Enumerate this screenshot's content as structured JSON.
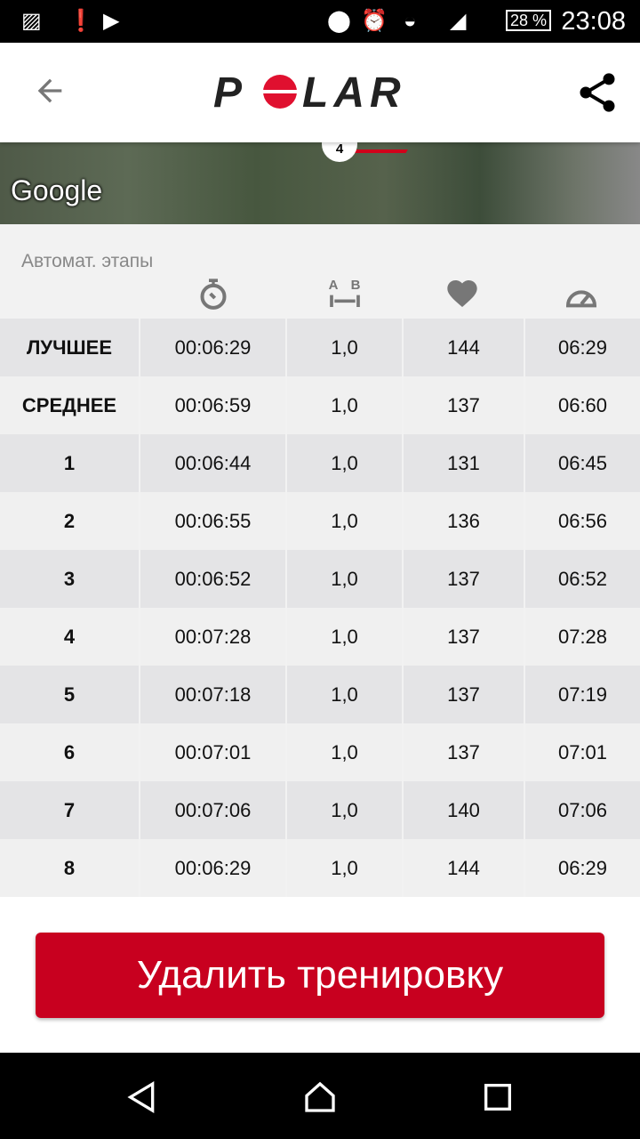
{
  "status_bar": {
    "time": "23:08",
    "battery": "28 %",
    "icons": [
      "image-icon",
      "battery-alert-icon",
      "youtube-icon",
      "location-icon",
      "alarm-icon",
      "wifi-icon",
      "signal-icon"
    ]
  },
  "app_bar": {
    "logo": "POLAR",
    "back_icon": "arrow-left-icon",
    "share_icon": "share-icon"
  },
  "map": {
    "attribution": "Google",
    "marker": "4",
    "route_color": "#d0021b"
  },
  "laps": {
    "title": "Автомат. этапы",
    "column_icons": [
      "stopwatch-icon",
      "distance-icon",
      "heart-icon",
      "speedometer-icon"
    ],
    "rows": [
      [
        "ЛУЧШЕЕ",
        "00:06:29",
        "1,0",
        "144",
        "06:29"
      ],
      [
        "СРЕДНЕЕ",
        "00:06:59",
        "1,0",
        "137",
        "06:60"
      ],
      [
        "1",
        "00:06:44",
        "1,0",
        "131",
        "06:45"
      ],
      [
        "2",
        "00:06:55",
        "1,0",
        "136",
        "06:56"
      ],
      [
        "3",
        "00:06:52",
        "1,0",
        "137",
        "06:52"
      ],
      [
        "4",
        "00:07:28",
        "1,0",
        "137",
        "07:28"
      ],
      [
        "5",
        "00:07:18",
        "1,0",
        "137",
        "07:19"
      ],
      [
        "6",
        "00:07:01",
        "1,0",
        "137",
        "07:01"
      ],
      [
        "7",
        "00:07:06",
        "1,0",
        "140",
        "07:06"
      ],
      [
        "8",
        "00:06:29",
        "1,0",
        "144",
        "06:29"
      ]
    ]
  },
  "delete_button": "Удалить тренировку",
  "colors": {
    "accent": "#c8001f"
  }
}
